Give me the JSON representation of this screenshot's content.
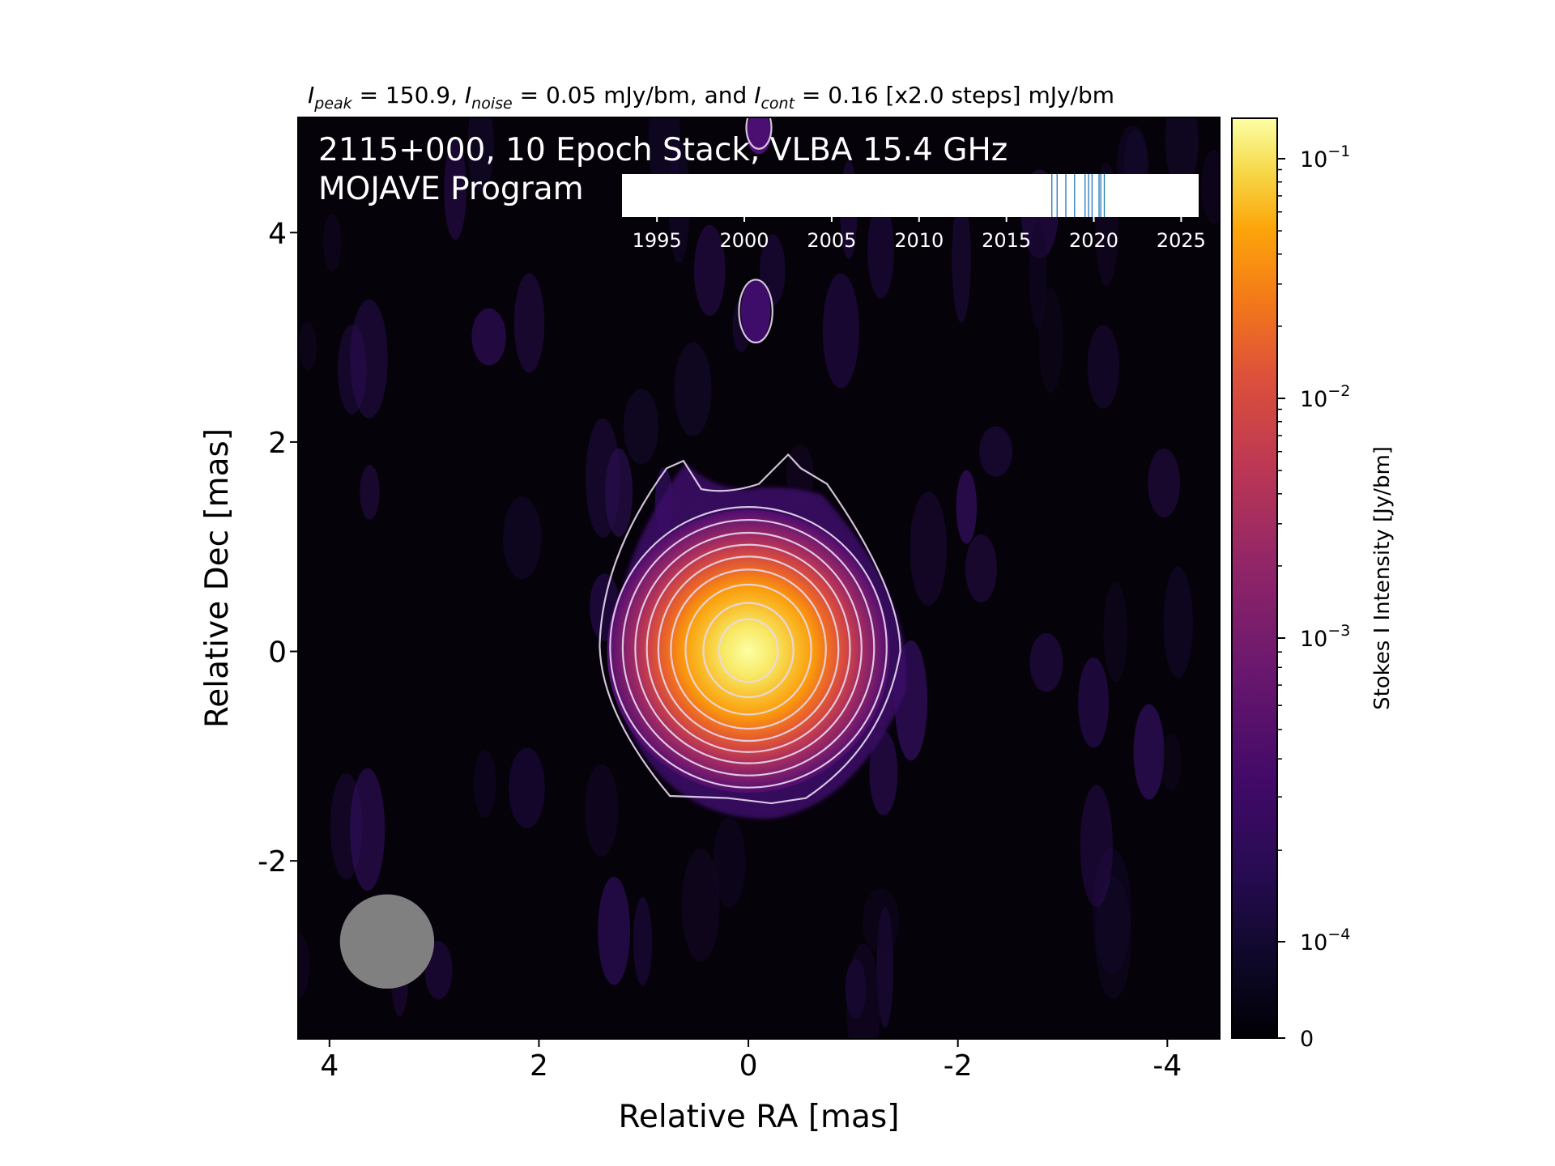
{
  "chart_data": {
    "type": "heatmap",
    "header": {
      "prefix": "I",
      "peak_sub": "peak",
      "peak_value": " = 150.9, ",
      "noise_sub": "noise",
      "noise_value": " = 0.05 mJy/bm, and ",
      "cont_sub": "cont",
      "cont_value": " = 0.16 [x2.0 steps] mJy/bm"
    },
    "title_line1": "2115+000, 10 Epoch Stack, VLBA 15.4 GHz",
    "title_line2": "MOJAVE Program",
    "xlabel": "Relative RA [mas]",
    "ylabel": "Relative Dec [mas]",
    "xlim": [
      4.3,
      -4.5
    ],
    "ylim": [
      -3.7,
      5.1
    ],
    "x_ticks": [
      {
        "value": 4,
        "label": "4"
      },
      {
        "value": 2,
        "label": "2"
      },
      {
        "value": 0,
        "label": "0"
      },
      {
        "value": -2,
        "label": "-2"
      },
      {
        "value": -4,
        "label": "-4"
      }
    ],
    "y_ticks": [
      {
        "value": 4,
        "label": "4"
      },
      {
        "value": 2,
        "label": "2"
      },
      {
        "value": 0,
        "label": "0"
      },
      {
        "value": -2,
        "label": "-2"
      }
    ],
    "peak_intensity_mjy": 150.9,
    "noise_mjy": 0.05,
    "lowest_contour_mjy": 0.16,
    "contour_step_factor": 2.0,
    "contour_count": 10,
    "beam": {
      "ra_center": 3.45,
      "dec_center": -2.77,
      "major_mas": 0.9,
      "minor_mas": 0.9,
      "color": "#808080"
    },
    "epoch_timeline": {
      "range": [
        1993,
        2026
      ],
      "tick_labels": [
        {
          "value": 1995,
          "label": "1995"
        },
        {
          "value": 2000,
          "label": "2000"
        },
        {
          "value": 2005,
          "label": "2005"
        },
        {
          "value": 2010,
          "label": "2010"
        },
        {
          "value": 2015,
          "label": "2015"
        },
        {
          "value": 2020,
          "label": "2020"
        },
        {
          "value": 2025,
          "label": "2025"
        }
      ],
      "epochs": [
        2017.6,
        2017.9,
        2018.4,
        2018.9,
        2019.5,
        2019.7,
        2019.9,
        2020.3,
        2020.4,
        2020.6
      ],
      "line_color": "#1f77b4"
    },
    "colorbar": {
      "label": "Stokes I Intensity [Jy/bm]",
      "scale": "log",
      "colormap": "inferno",
      "ticks": [
        {
          "value": 0.1,
          "base": "10",
          "exp": "−1"
        },
        {
          "value": 0.01,
          "base": "10",
          "exp": "−2"
        },
        {
          "value": 0.001,
          "base": "10",
          "exp": "−3"
        },
        {
          "value": 0.0001,
          "base": "10",
          "exp": "−4"
        }
      ],
      "zero_label": "0"
    }
  }
}
